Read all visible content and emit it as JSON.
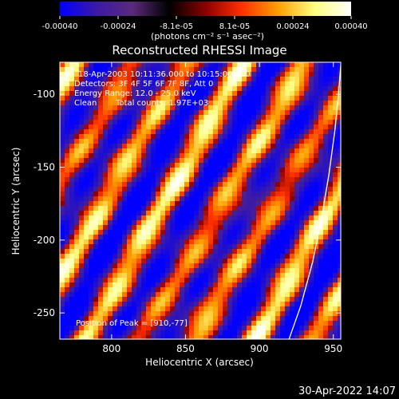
{
  "colorbar": {
    "tick_labels": [
      "-0.00040",
      "-0.00024",
      "-8.1e-05",
      "8.1e-05",
      "0.00024",
      "0.00040"
    ],
    "unit_label": "(photons cm⁻² s⁻¹ asec⁻²)",
    "range": [
      -0.0004,
      0.0004
    ],
    "stops": [
      "#0000ff",
      "#3a1aa8",
      "#5a2a7a",
      "#000000",
      "#8a0000",
      "#ff3000",
      "#ffa000",
      "#ffff80",
      "#ffffff"
    ]
  },
  "annotations": {
    "time_range": "18-Apr-2003 10:11:36.000 to 10:15:00.000",
    "detectors": "Detectors: 3F 4F 5F 6F 7F 8F, Att 0",
    "energy": "Energy Range: 12.0 - 25.0 keV",
    "method": "Clean",
    "total_counts": "Total counts: 1.97E+03",
    "peak": "Position of Peak = [910,-77]"
  },
  "timestamp": "30-Apr-2022 14:07",
  "chart_data": {
    "type": "heatmap",
    "title": "Reconstructed RHESSI Image",
    "xlabel": "Heliocentric X (arcsec)",
    "ylabel": "Heliocentric Y (arcsec)",
    "xlim": [
      765,
      955
    ],
    "ylim": [
      -268,
      -78
    ],
    "xticks": [
      800,
      850,
      900,
      950
    ],
    "yticks": [
      -100,
      -150,
      -200,
      -250
    ],
    "peak_position": [
      910,
      -77
    ],
    "limb_curve": {
      "x": [
        920,
        928,
        936,
        942,
        947,
        951,
        953.5,
        955
      ],
      "y": [
        -268,
        -245,
        -215,
        -185,
        -155,
        -125,
        -100,
        -80
      ]
    }
  }
}
